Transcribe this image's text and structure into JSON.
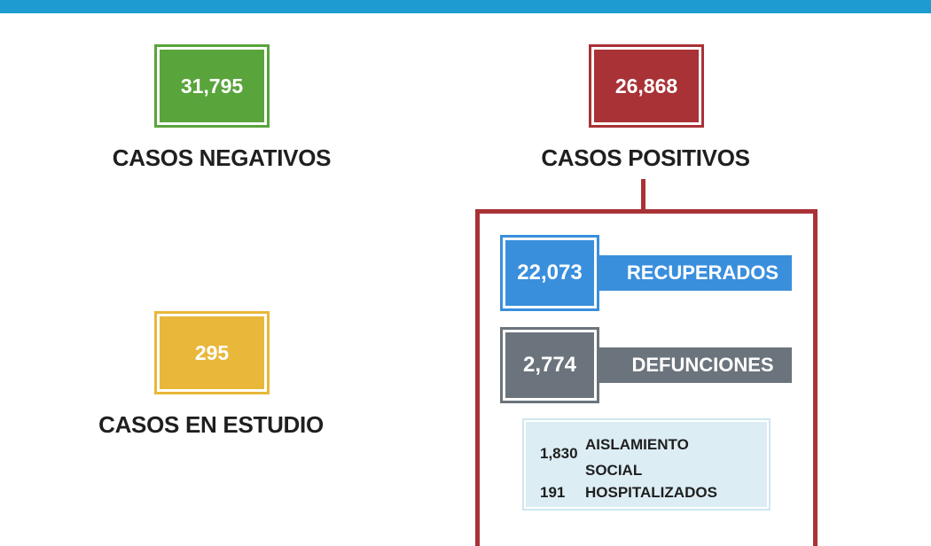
{
  "colors": {
    "topbar": "#1e9bd0",
    "negativos": "#5aa43c",
    "positivos": "#a83236",
    "estudio": "#e9b73a",
    "recuperados": "#3a8fdd",
    "defunciones": "#6b747c",
    "detalle": "#dcedf4"
  },
  "negativos": {
    "value": "31,795",
    "label": "CASOS NEGATIVOS"
  },
  "positivos": {
    "value": "26,868",
    "label": "CASOS POSITIVOS"
  },
  "estudio": {
    "value": "295",
    "label": "CASOS EN ESTUDIO"
  },
  "recuperados": {
    "value": "22,073",
    "label": "RECUPERADOS"
  },
  "defunciones": {
    "value": "2,774",
    "label": "DEFUNCIONES"
  },
  "detalle": {
    "aislamiento": {
      "value": "1,830",
      "label": "AISLAMIENTO SOCIAL"
    },
    "hospitalizados": {
      "value": "191",
      "label": "HOSPITALIZADOS"
    }
  }
}
